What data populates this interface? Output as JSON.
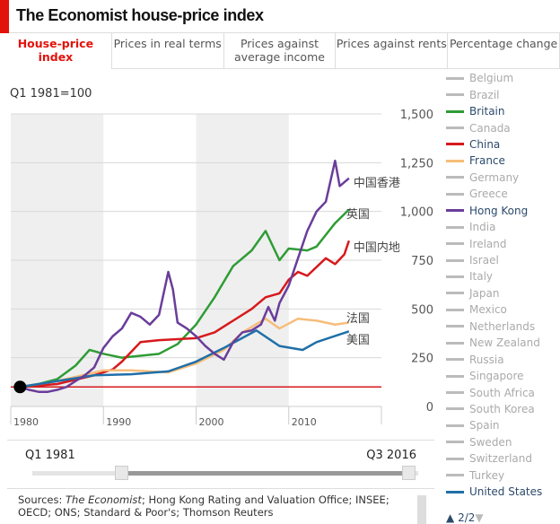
{
  "title": "The Economist house-price index",
  "tabs": [
    {
      "label": "House-price index",
      "active": true
    },
    {
      "label": "Prices in real terms"
    },
    {
      "label": "Prices against average income"
    },
    {
      "label": "Prices against rents"
    },
    {
      "label": "Percentage change"
    }
  ],
  "unit_label": "Q1 1981=100",
  "legend": [
    {
      "name": "Belgium",
      "color": "#bbbbbb"
    },
    {
      "name": "Brazil",
      "color": "#bbbbbb"
    },
    {
      "name": "Britain",
      "color": "#2e9c35"
    },
    {
      "name": "Canada",
      "color": "#bbbbbb"
    },
    {
      "name": "China",
      "color": "#d7191c"
    },
    {
      "name": "France",
      "color": "#f6bd7a"
    },
    {
      "name": "Germany",
      "color": "#bbbbbb"
    },
    {
      "name": "Greece",
      "color": "#bbbbbb"
    },
    {
      "name": "Hong Kong",
      "color": "#6a3d9a"
    },
    {
      "name": "India",
      "color": "#bbbbbb"
    },
    {
      "name": "Ireland",
      "color": "#bbbbbb"
    },
    {
      "name": "Israel",
      "color": "#bbbbbb"
    },
    {
      "name": "Italy",
      "color": "#bbbbbb"
    },
    {
      "name": "Japan",
      "color": "#bbbbbb"
    },
    {
      "name": "Mexico",
      "color": "#bbbbbb"
    },
    {
      "name": "Netherlands",
      "color": "#bbbbbb"
    },
    {
      "name": "New Zealand",
      "color": "#bbbbbb"
    },
    {
      "name": "Russia",
      "color": "#bbbbbb"
    },
    {
      "name": "Singapore",
      "color": "#bbbbbb"
    },
    {
      "name": "South Africa",
      "color": "#bbbbbb"
    },
    {
      "name": "South Korea",
      "color": "#bbbbbb"
    },
    {
      "name": "Spain",
      "color": "#bbbbbb"
    },
    {
      "name": "Sweden",
      "color": "#bbbbbb"
    },
    {
      "name": "Switzerland",
      "color": "#bbbbbb"
    },
    {
      "name": "Turkey",
      "color": "#bbbbbb"
    },
    {
      "name": "United States",
      "color": "#1f6fa8"
    }
  ],
  "pager": "2/2",
  "slider": {
    "start": "Q1 1981",
    "end": "Q3 2016"
  },
  "sources_prefix": "Sources: ",
  "sources_italic": "The Economist",
  "sources_rest": "; Hong Kong Rating and Valuation Office; INSEE; OECD; ONS; Standard & Poor's; Thomson Reuters",
  "chart_data": {
    "type": "line",
    "xlim": [
      1980,
      2020
    ],
    "ylim": [
      0,
      1500
    ],
    "yticks": [
      {
        "v": 0,
        "label": "0"
      },
      {
        "v": 250,
        "label": "250"
      },
      {
        "v": 500,
        "label": "500"
      },
      {
        "v": 750,
        "label": "750"
      },
      {
        "v": 1000,
        "label": "1,000"
      },
      {
        "v": 1250,
        "label": "1,250"
      },
      {
        "v": 1500,
        "label": "1,500"
      }
    ],
    "xticks": [
      {
        "v": 1980,
        "label": "1980"
      },
      {
        "v": 1990,
        "label": "1990"
      },
      {
        "v": 2000,
        "label": "2000"
      },
      {
        "v": 2010,
        "label": "2010"
      }
    ],
    "shaded_decades": [
      [
        1980,
        1990
      ],
      [
        2000,
        2010
      ]
    ],
    "baseline": 100,
    "baseline_color": "#d7191c",
    "series": [
      {
        "name": "英国",
        "color": "#2e9c35",
        "points": [
          [
            1981,
            100
          ],
          [
            1983,
            115
          ],
          [
            1985,
            140
          ],
          [
            1987,
            210
          ],
          [
            1988.5,
            290
          ],
          [
            1990,
            270
          ],
          [
            1992,
            250
          ],
          [
            1994,
            260
          ],
          [
            1996,
            270
          ],
          [
            1998,
            320
          ],
          [
            2000,
            420
          ],
          [
            2002,
            560
          ],
          [
            2004,
            720
          ],
          [
            2006,
            800
          ],
          [
            2007.5,
            900
          ],
          [
            2009,
            750
          ],
          [
            2010,
            810
          ],
          [
            2012,
            800
          ],
          [
            2013,
            820
          ],
          [
            2014,
            880
          ],
          [
            2015,
            940
          ],
          [
            2016.5,
            1010
          ]
        ]
      },
      {
        "name": "中国内地",
        "color": "#d7191c",
        "points": [
          [
            1981,
            100
          ],
          [
            1985,
            115
          ],
          [
            1989,
            160
          ],
          [
            1991,
            190
          ],
          [
            1992,
            230
          ],
          [
            1993,
            280
          ],
          [
            1994,
            330
          ],
          [
            1996,
            340
          ],
          [
            2000,
            350
          ],
          [
            2002,
            380
          ],
          [
            2004,
            440
          ],
          [
            2006,
            500
          ],
          [
            2007.5,
            560
          ],
          [
            2009,
            580
          ],
          [
            2010,
            650
          ],
          [
            2011,
            690
          ],
          [
            2012,
            670
          ],
          [
            2014,
            760
          ],
          [
            2015,
            730
          ],
          [
            2016,
            780
          ],
          [
            2016.5,
            850
          ]
        ]
      },
      {
        "name": "法国",
        "color": "#f6bd7a",
        "points": [
          [
            1981,
            100
          ],
          [
            1985,
            130
          ],
          [
            1990,
            185
          ],
          [
            1993,
            185
          ],
          [
            1997,
            175
          ],
          [
            2000,
            220
          ],
          [
            2003,
            290
          ],
          [
            2005,
            380
          ],
          [
            2007.5,
            450
          ],
          [
            2009,
            400
          ],
          [
            2011,
            450
          ],
          [
            2013,
            440
          ],
          [
            2015,
            420
          ],
          [
            2016.5,
            430
          ]
        ]
      },
      {
        "name": "美国",
        "color": "#1f6fa8",
        "points": [
          [
            1981,
            100
          ],
          [
            1985,
            130
          ],
          [
            1989,
            160
          ],
          [
            1993,
            165
          ],
          [
            1997,
            180
          ],
          [
            2000,
            230
          ],
          [
            2003,
            300
          ],
          [
            2006.5,
            390
          ],
          [
            2009,
            310
          ],
          [
            2011.5,
            290
          ],
          [
            2013,
            330
          ],
          [
            2016.5,
            385
          ]
        ]
      },
      {
        "name": "中国香港",
        "color": "#6a3d9a",
        "points": [
          [
            1981,
            100
          ],
          [
            1982,
            85
          ],
          [
            1983,
            75
          ],
          [
            1984,
            75
          ],
          [
            1985,
            85
          ],
          [
            1986,
            100
          ],
          [
            1987,
            130
          ],
          [
            1988,
            160
          ],
          [
            1989,
            200
          ],
          [
            1990,
            300
          ],
          [
            1991,
            360
          ],
          [
            1992,
            400
          ],
          [
            1993,
            480
          ],
          [
            1994,
            460
          ],
          [
            1995,
            420
          ],
          [
            1996,
            470
          ],
          [
            1997,
            690
          ],
          [
            1997.5,
            600
          ],
          [
            1998,
            430
          ],
          [
            1999,
            400
          ],
          [
            2000,
            360
          ],
          [
            2001,
            310
          ],
          [
            2002,
            270
          ],
          [
            2003,
            240
          ],
          [
            2004,
            330
          ],
          [
            2005,
            380
          ],
          [
            2006,
            390
          ],
          [
            2007,
            420
          ],
          [
            2007.8,
            510
          ],
          [
            2008.5,
            440
          ],
          [
            2009,
            530
          ],
          [
            2010,
            620
          ],
          [
            2011,
            760
          ],
          [
            2012,
            900
          ],
          [
            2013,
            1000
          ],
          [
            2014,
            1050
          ],
          [
            2015,
            1260
          ],
          [
            2015.5,
            1130
          ],
          [
            2016.5,
            1170
          ]
        ]
      }
    ],
    "series_label_positions": {
      "中国香港": 1150,
      "英国": 990,
      "中国内地": 820,
      "法国": 455,
      "美国": 345
    }
  }
}
